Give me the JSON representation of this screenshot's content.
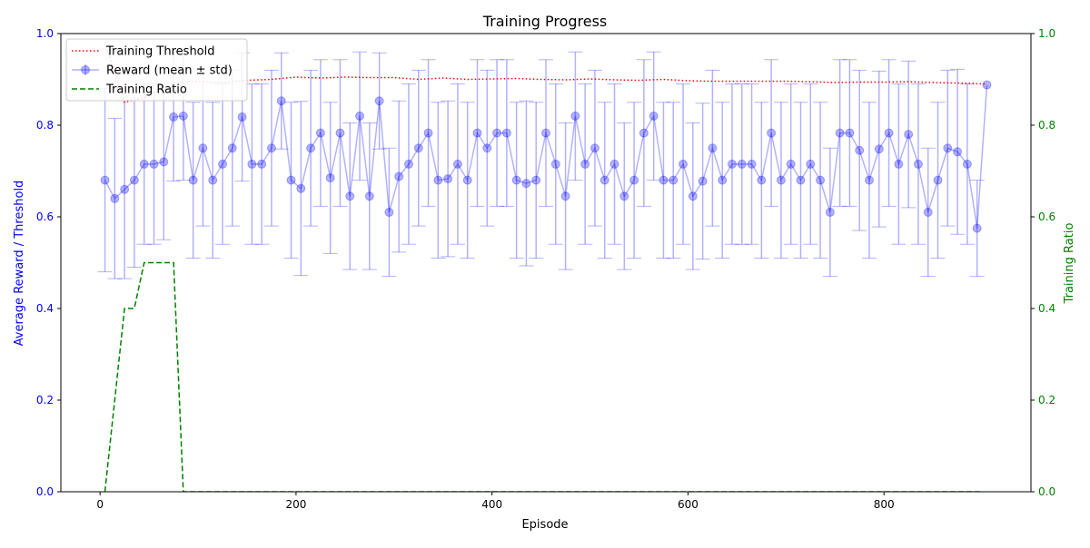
{
  "chart_data": {
    "type": "line",
    "title": "Training Progress",
    "xlabel": "Episode",
    "ylabel_left": "Average Reward / Threshold",
    "ylabel_right": "Training Ratio",
    "xlim": [
      -40,
      950
    ],
    "ylim_left": [
      0.0,
      1.0
    ],
    "ylim_right": [
      0.0,
      1.0
    ],
    "x_ticks": [
      0,
      200,
      400,
      600,
      800
    ],
    "y_ticks_left": [
      0.0,
      0.2,
      0.4,
      0.6,
      0.8,
      1.0
    ],
    "y_ticks_right": [
      0.0,
      0.2,
      0.4,
      0.6,
      0.8,
      1.0
    ],
    "grid": false,
    "legend_position": "top-left",
    "colors": {
      "left_axis": "#0000ff",
      "right_axis": "#008000",
      "threshold": "#ff0000",
      "reward": "#0000ff",
      "ratio": "#008000"
    },
    "legend": [
      {
        "key": "threshold",
        "label": "Training Threshold",
        "style": "dotted"
      },
      {
        "key": "reward",
        "label": "Reward (mean ± std)",
        "style": "errorbar"
      },
      {
        "key": "ratio",
        "label": "Training Ratio",
        "style": "dashed"
      }
    ],
    "reward": {
      "x": [
        5,
        15,
        25,
        35,
        45,
        55,
        65,
        75,
        85,
        95,
        105,
        115,
        125,
        135,
        145,
        155,
        165,
        175,
        185,
        195,
        205,
        215,
        225,
        235,
        245,
        255,
        265,
        275,
        285,
        295,
        305,
        315,
        325,
        335,
        345,
        355,
        365,
        375,
        385,
        395,
        405,
        415,
        425,
        435,
        445,
        455,
        465,
        475,
        485,
        495,
        505,
        515,
        525,
        535,
        545,
        555,
        565,
        575,
        585,
        595,
        605,
        615,
        625,
        635,
        645,
        655,
        665,
        675,
        685,
        695,
        705,
        715,
        725,
        735,
        745,
        755,
        765,
        775,
        785,
        795,
        805,
        815,
        825,
        835,
        845,
        855,
        865,
        875,
        885,
        895,
        905
      ],
      "mean": [
        0.68,
        0.64,
        0.66,
        0.68,
        0.715,
        0.715,
        0.72,
        0.818,
        0.82,
        0.68,
        0.75,
        0.68,
        0.715,
        0.75,
        0.818,
        0.715,
        0.715,
        0.75,
        0.853,
        0.68,
        0.662,
        0.75,
        0.783,
        0.685,
        0.783,
        0.645,
        0.82,
        0.645,
        0.853,
        0.61,
        0.688,
        0.715,
        0.75,
        0.783,
        0.68,
        0.683,
        0.715,
        0.68,
        0.783,
        0.75,
        0.783,
        0.783,
        0.68,
        0.673,
        0.68,
        0.783,
        0.715,
        0.645,
        0.82,
        0.715,
        0.75,
        0.68,
        0.715,
        0.645,
        0.68,
        0.783,
        0.82,
        0.68,
        0.68,
        0.715,
        0.645,
        0.678,
        0.75,
        0.68,
        0.715,
        0.715,
        0.715,
        0.68,
        0.783,
        0.68,
        0.715,
        0.68,
        0.715,
        0.68,
        0.61,
        0.783,
        0.783,
        0.745,
        0.68,
        0.748,
        0.783,
        0.715,
        0.78,
        0.715,
        0.61,
        0.68,
        0.75,
        0.742,
        0.715,
        0.575,
        0.888
      ],
      "std": [
        0.2,
        0.175,
        0.195,
        0.19,
        0.175,
        0.175,
        0.17,
        0.14,
        0.14,
        0.17,
        0.17,
        0.17,
        0.175,
        0.17,
        0.14,
        0.175,
        0.175,
        0.17,
        0.105,
        0.17,
        0.19,
        0.17,
        0.16,
        0.165,
        0.16,
        0.16,
        0.14,
        0.16,
        0.105,
        0.14,
        0.165,
        0.175,
        0.17,
        0.16,
        0.17,
        0.17,
        0.175,
        0.17,
        0.16,
        0.17,
        0.16,
        0.16,
        0.17,
        0.18,
        0.17,
        0.16,
        0.175,
        0.16,
        0.14,
        0.175,
        0.17,
        0.17,
        0.175,
        0.16,
        0.17,
        0.16,
        0.14,
        0.17,
        0.17,
        0.175,
        0.16,
        0.17,
        0.17,
        0.17,
        0.175,
        0.175,
        0.175,
        0.17,
        0.16,
        0.17,
        0.175,
        0.17,
        0.175,
        0.17,
        0.14,
        0.16,
        0.16,
        0.175,
        0.17,
        0.17,
        0.16,
        0.175,
        0.16,
        0.175,
        0.14,
        0.17,
        0.17,
        0.18,
        0.175,
        0.105,
        0.0
      ]
    },
    "threshold": {
      "x": [
        5,
        25,
        35,
        45,
        55,
        65,
        75,
        85,
        100,
        125,
        150,
        175,
        200,
        225,
        250,
        275,
        300,
        325,
        350,
        375,
        400,
        425,
        450,
        475,
        500,
        525,
        550,
        575,
        600,
        625,
        650,
        675,
        700,
        725,
        750,
        775,
        800,
        825,
        850,
        875,
        905
      ],
      "y": [
        0.98,
        0.85,
        0.855,
        0.86,
        0.87,
        0.875,
        0.89,
        0.895,
        0.895,
        0.893,
        0.898,
        0.9,
        0.905,
        0.903,
        0.905,
        0.904,
        0.904,
        0.9,
        0.903,
        0.9,
        0.901,
        0.902,
        0.9,
        0.899,
        0.901,
        0.899,
        0.898,
        0.9,
        0.897,
        0.896,
        0.896,
        0.896,
        0.896,
        0.895,
        0.893,
        0.894,
        0.894,
        0.895,
        0.893,
        0.892,
        0.89
      ]
    },
    "ratio": {
      "x": [
        5,
        15,
        25,
        35,
        45,
        55,
        65,
        75,
        85,
        95,
        200,
        400,
        600,
        800,
        900
      ],
      "y": [
        0.0,
        0.2,
        0.4,
        0.4,
        0.5,
        0.5,
        0.5,
        0.5,
        0.0,
        0.0,
        0.0,
        0.0,
        0.0,
        0.0,
        0.0
      ]
    }
  }
}
